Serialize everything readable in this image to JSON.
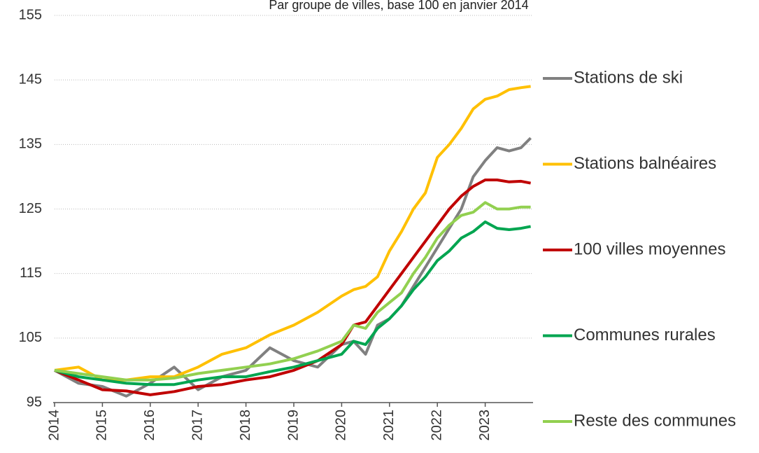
{
  "chart_data": {
    "type": "line",
    "subtitle": "Par groupe de villes, base 100 en janvier 2014",
    "x": [
      2014,
      2014.5,
      2015,
      2015.5,
      2016,
      2016.5,
      2017,
      2017.5,
      2018,
      2018.5,
      2019,
      2019.5,
      2020,
      2020.25,
      2020.5,
      2020.75,
      2021,
      2021.25,
      2021.5,
      2021.75,
      2022,
      2022.25,
      2022.5,
      2022.75,
      2023,
      2023.25,
      2023.5,
      2023.75,
      2023.95
    ],
    "series": [
      {
        "name": "Stations de ski",
        "color": "#808080",
        "values": [
          100,
          98,
          97.5,
          96,
          98,
          100.5,
          97,
          99,
          100,
          103.5,
          101.5,
          100.5,
          104,
          104.5,
          102.5,
          107,
          108,
          110,
          113,
          116,
          119,
          122,
          125,
          130,
          132.5,
          134.5,
          134,
          134.5,
          136
        ]
      },
      {
        "name": "Stations balnéaires",
        "color": "#ffc000",
        "values": [
          100,
          100.5,
          98.5,
          98.5,
          99,
          99,
          100.5,
          102.5,
          103.5,
          105.5,
          107,
          109,
          111.5,
          112.5,
          113,
          114.5,
          118.5,
          121.5,
          125,
          127.5,
          133,
          135,
          137.5,
          140.5,
          142,
          142.5,
          143.5,
          143.8,
          144
        ]
      },
      {
        "name": "100 villes moyennes",
        "color": "#c00000",
        "values": [
          100,
          98.5,
          97,
          96.8,
          96.2,
          96.7,
          97.5,
          97.8,
          98.5,
          99,
          100,
          101.5,
          104,
          107,
          107.5,
          110,
          112.5,
          115,
          117.5,
          120,
          122.5,
          125,
          127,
          128.5,
          129.5,
          129.5,
          129.2,
          129.3,
          129
        ]
      },
      {
        "name": "Communes rurales",
        "color": "#00a550",
        "values": [
          100,
          99,
          98.5,
          98,
          97.8,
          97.8,
          98.5,
          99,
          99,
          99.8,
          100.5,
          101.5,
          102.5,
          104.5,
          104,
          106.5,
          108,
          110,
          112.5,
          114.5,
          117,
          118.5,
          120.5,
          121.5,
          123,
          122,
          121.8,
          122,
          122.3
        ]
      },
      {
        "name": "Reste des communes",
        "color": "#92d050",
        "values": [
          100,
          99.5,
          99,
          98.5,
          98.5,
          98.8,
          99.5,
          100,
          100.5,
          101,
          101.8,
          103,
          104.5,
          107,
          106.5,
          109,
          110.5,
          112,
          115,
          117.5,
          120.5,
          122.5,
          124,
          124.5,
          126,
          125,
          125,
          125.3,
          125.3
        ]
      }
    ],
    "xlim": [
      2014,
      2024
    ],
    "xticks": [
      2014,
      2015,
      2016,
      2017,
      2018,
      2019,
      2020,
      2021,
      2022,
      2023
    ],
    "ylim": [
      95,
      155
    ],
    "yticks": [
      95,
      105,
      115,
      125,
      135,
      145,
      155
    ],
    "grid": true,
    "legend": "right"
  }
}
